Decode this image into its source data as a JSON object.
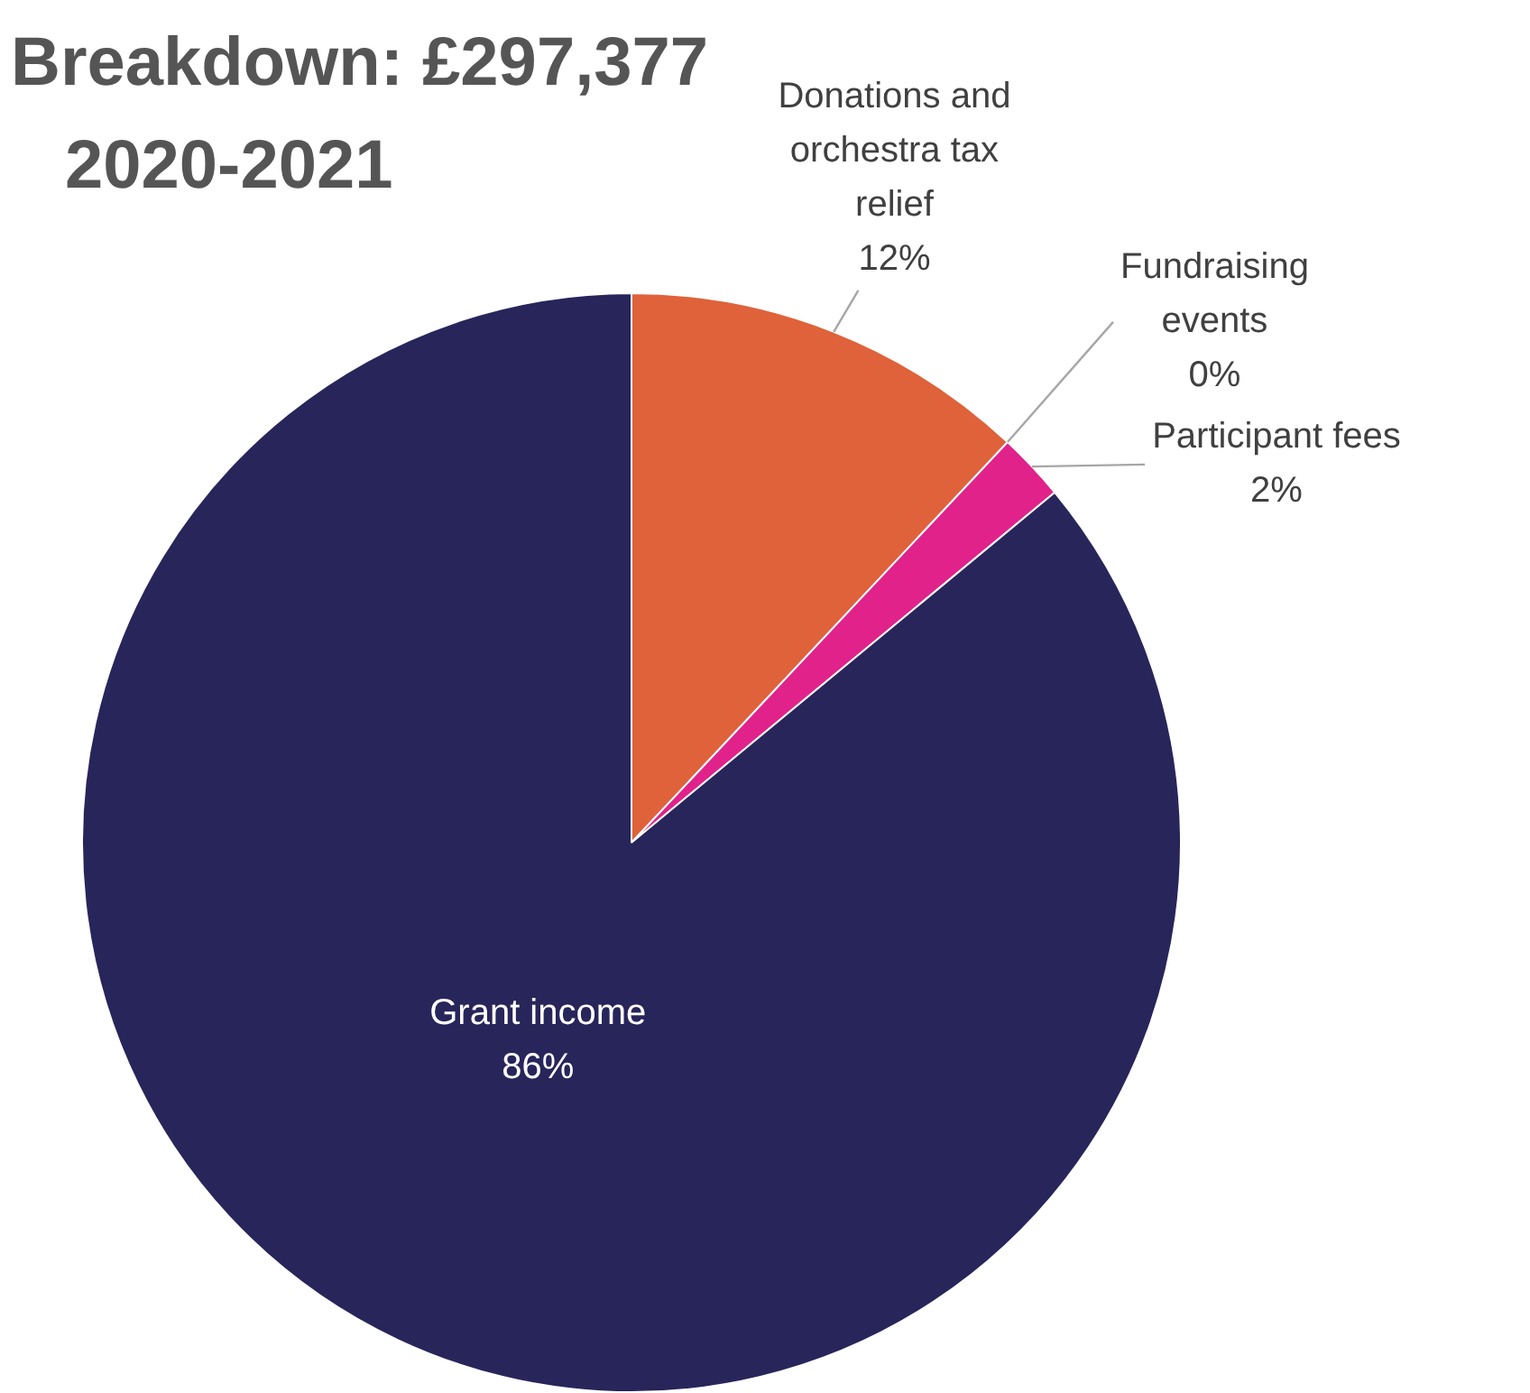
{
  "chart_data": {
    "type": "pie",
    "title": "Breakdown: £297,377",
    "subtitle": "2020-2021",
    "categories": [
      "Donations and orchestra tax relief",
      "Fundraising events",
      "Participant fees",
      "Grant income"
    ],
    "values": [
      12,
      0,
      2,
      86
    ],
    "value_labels": [
      "12%",
      "0%",
      "2%",
      "86%"
    ],
    "colors": [
      "#df623a",
      "#1c1c2e",
      "#e0228a",
      "#27255a"
    ],
    "legend": false
  }
}
